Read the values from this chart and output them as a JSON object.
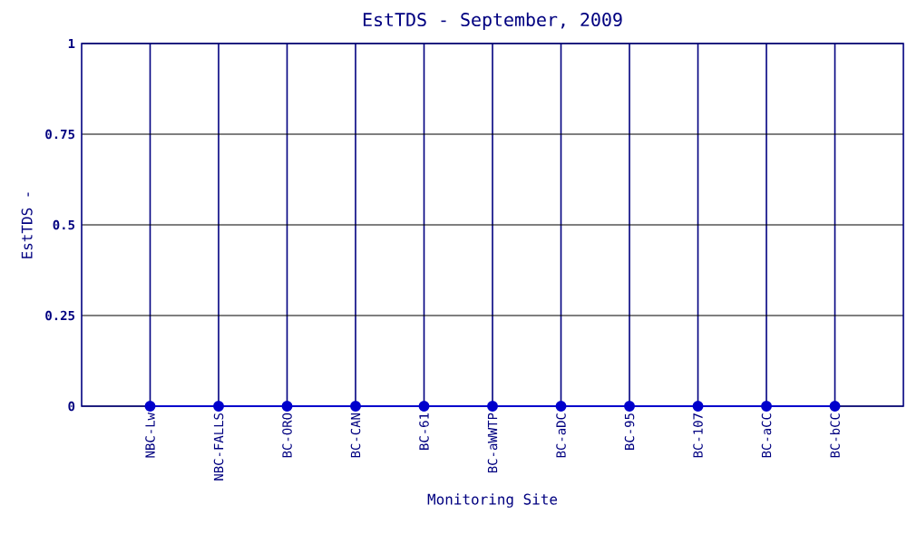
{
  "chart_data": {
    "type": "line",
    "title": "EstTDS - September, 2009",
    "xlabel": "Monitoring Site",
    "ylabel": "EstTDS -",
    "categories": [
      "NBC-Lw",
      "NBC-FALLS",
      "BC-ORO",
      "BC-CAN",
      "BC-61",
      "BC-aWWTP",
      "BC-aDC",
      "BC-95",
      "BC-107",
      "BC-aCC",
      "BC-bCC"
    ],
    "series": [
      {
        "color": "#0000cc",
        "values": [
          0,
          0,
          0,
          0,
          0,
          0,
          0,
          0,
          0,
          0,
          0
        ]
      }
    ],
    "ylim": [
      0,
      1
    ],
    "yticks": [
      0,
      0.25,
      0.5,
      0.75,
      1
    ],
    "grid": true,
    "marker": "circle"
  }
}
